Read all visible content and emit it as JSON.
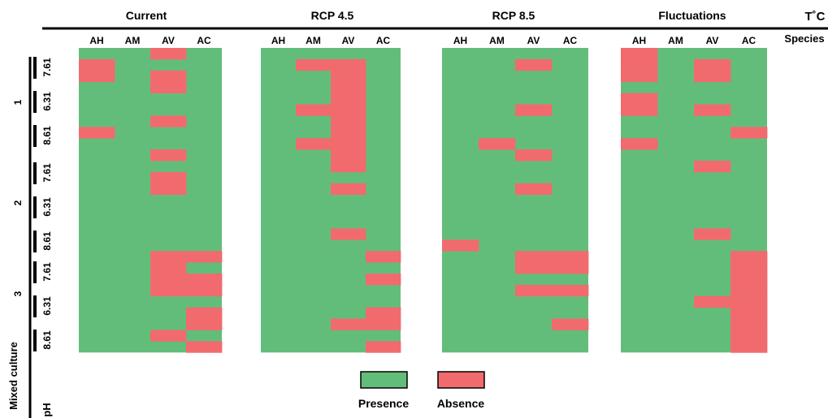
{
  "chart_data": {
    "type": "heatmap",
    "panels": [
      "Current",
      "RCP 4.5",
      "RCP 8.5",
      "Fluctuations"
    ],
    "species": [
      "AH",
      "AM",
      "AV",
      "AC"
    ],
    "temp_label": "T˚C",
    "species_label": "Species",
    "mixed_culture_label": "Mixed culture",
    "ph_label": "pH",
    "cultures": [
      "1",
      "2",
      "3"
    ],
    "ph_levels": [
      "7.61",
      "6.31",
      "8.61"
    ],
    "colors": {
      "presence": "#63bd7a",
      "absence": "#f16b6e",
      "axis": "#000000"
    },
    "legend": [
      {
        "label": "Presence",
        "key": "presence"
      },
      {
        "label": "Absence",
        "key": "absence"
      }
    ],
    "n_rows": 27,
    "absence_cells": {
      "Current": {
        "AH": [
          1,
          2,
          7
        ],
        "AM": [],
        "AV": [
          0,
          2,
          3,
          6,
          9,
          11,
          12,
          18,
          19,
          20,
          21,
          25
        ],
        "AC": [
          18,
          20,
          21,
          23,
          24,
          26
        ]
      },
      "RCP 4.5": {
        "AH": [],
        "AM": [
          1,
          5,
          8
        ],
        "AV": [
          1,
          2,
          3,
          4,
          5,
          6,
          7,
          8,
          9,
          10,
          12,
          16,
          24
        ],
        "AC": [
          18,
          20,
          23,
          24,
          26
        ]
      },
      "RCP 8.5": {
        "AH": [
          17
        ],
        "AM": [
          8
        ],
        "AV": [
          1,
          5,
          9,
          12,
          18,
          19,
          21
        ],
        "AC": [
          18,
          19,
          21,
          24
        ]
      },
      "Fluctuations": {
        "AH": [
          0,
          1,
          2,
          4,
          5,
          8
        ],
        "AM": [],
        "AV": [
          1,
          2,
          5,
          10,
          16,
          22
        ],
        "AC": [
          7,
          18,
          19,
          20,
          21,
          22,
          23,
          24,
          25,
          26
        ]
      }
    }
  }
}
